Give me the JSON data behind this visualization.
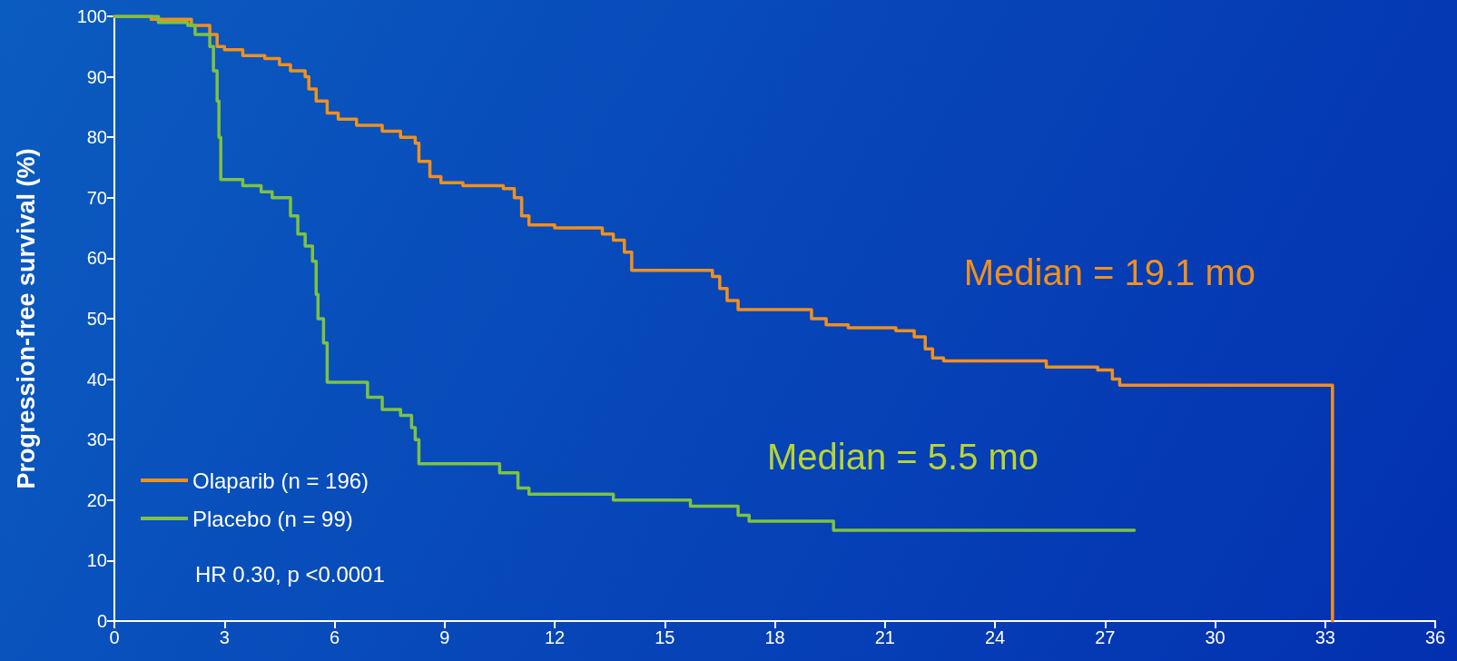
{
  "chart_data": {
    "type": "step",
    "ylabel": "Progression-free survival (%)",
    "xlim": [
      0,
      36
    ],
    "xticks": [
      0,
      3,
      6,
      9,
      12,
      15,
      18,
      21,
      24,
      27,
      30,
      33,
      36
    ],
    "ylim": [
      0,
      100
    ],
    "yticks": [
      0,
      10,
      20,
      30,
      40,
      50,
      60,
      70,
      80,
      90,
      100
    ],
    "grid": false,
    "legend": "bottom left",
    "marker": "none",
    "line_style": "solid",
    "annotations": [
      "Median = 19.1 mo",
      "Median = 5.5 mo",
      "HR 0.30, p <0.0001"
    ],
    "series": [
      {
        "name": "Olaparib (n = 196)",
        "color": "#f0901e",
        "x": [
          0,
          1,
          2.1,
          2.6,
          2.8,
          3.0,
          3.5,
          4.1,
          4.5,
          4.8,
          5.2,
          5.3,
          5.5,
          5.8,
          6.1,
          6.6,
          7.3,
          7.8,
          8.2,
          8.3,
          8.6,
          8.9,
          9.5,
          10.6,
          10.9,
          11.1,
          11.3,
          12.0,
          13.3,
          13.6,
          13.9,
          14.1,
          16.3,
          16.5,
          16.7,
          17.0,
          19.0,
          19.4,
          20.0,
          21.3,
          21.8,
          22.1,
          22.3,
          22.6,
          25.4,
          26.8,
          27.2,
          27.4,
          33.2,
          33.2
        ],
        "values": [
          100,
          99.5,
          98.5,
          97,
          95,
          94.5,
          93.5,
          93,
          92,
          91,
          90,
          88,
          86,
          84,
          83,
          82,
          81,
          80,
          79,
          76,
          73.5,
          72.5,
          72,
          71.5,
          70,
          67,
          65.5,
          65,
          64,
          63,
          61,
          58,
          57,
          55,
          53,
          51.5,
          50,
          49,
          48.5,
          48,
          47,
          45,
          43.5,
          43,
          42,
          41.5,
          40,
          39,
          39,
          0
        ]
      },
      {
        "name": "Placebo (n = 99)",
        "color": "#7dc242",
        "x": [
          0,
          1.2,
          2.0,
          2.2,
          2.6,
          2.7,
          2.8,
          2.85,
          2.9,
          3.5,
          4.0,
          4.3,
          4.8,
          5.0,
          5.2,
          5.4,
          5.5,
          5.55,
          5.7,
          5.8,
          6.9,
          7.3,
          7.8,
          8.1,
          8.2,
          8.3,
          10.5,
          11.0,
          11.3,
          13.6,
          15.7,
          17.0,
          17.3,
          19.6,
          27.8
        ],
        "values": [
          100,
          99,
          98.5,
          97,
          95,
          91,
          86,
          80,
          73,
          72,
          71,
          70,
          67,
          64,
          62,
          59.5,
          54,
          50,
          46,
          39.5,
          37,
          35,
          34,
          32,
          30,
          26,
          24.5,
          22,
          21,
          20,
          19,
          17.5,
          16.5,
          15,
          15
        ]
      }
    ]
  }
}
